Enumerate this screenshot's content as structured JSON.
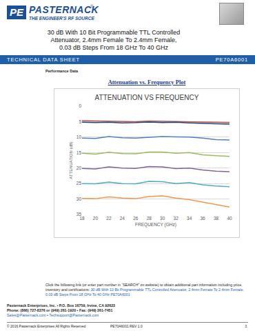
{
  "header": {
    "logo_mark": "PE",
    "logo_name": "PASTERNACK",
    "registered": "®",
    "tagline": "THE ENGINEER'S RF SOURCE",
    "title_lines": [
      "30 dB With 10 Bit Programmable TTL Controlled",
      "Attenuator, 2.4mm Female To 2.4mm Female,",
      "0.03 dB Steps From 18 GHz To 40 GHz"
    ],
    "banner_left": "TECHNICAL DATA SHEET",
    "banner_right": "PE70A6001"
  },
  "section": "Performance Data",
  "chart_heading": "Attenuation vs. Frequency Plot",
  "chart_data": {
    "type": "line",
    "title": "ATTENUATION VS FREQUENCY",
    "x_label": "FREQUENCY (GHz)",
    "y_label": "ATTENUATION (dB)",
    "x": [
      18,
      20,
      22,
      24,
      26,
      28,
      30,
      32,
      34,
      36,
      38,
      40
    ],
    "series": [
      {
        "color": "#c0504d",
        "values": [
          4.7,
          4.8,
          4.9,
          4.9,
          5.0,
          4.8,
          4.9,
          4.9,
          5.0,
          5.1,
          5.2,
          5.3
        ]
      },
      {
        "color": "#1f497d",
        "values": [
          5.2,
          5.3,
          5.2,
          5.4,
          5.3,
          5.1,
          5.3,
          5.2,
          5.4,
          5.6,
          5.7,
          5.8
        ]
      },
      {
        "color": "#4f81bd",
        "values": [
          10.3,
          10.4,
          9.8,
          10.2,
          10.3,
          10.0,
          9.8,
          9.9,
          10.0,
          10.3,
          10.8,
          10.9
        ]
      },
      {
        "color": "#9bbb59",
        "values": [
          15.2,
          15.5,
          14.9,
          15.3,
          15.4,
          14.8,
          14.8,
          15.2,
          15.0,
          15.7,
          16.0,
          16.2
        ]
      },
      {
        "color": "#8064a2",
        "values": [
          20.1,
          20.3,
          19.6,
          20.0,
          20.1,
          19.5,
          19.6,
          20.2,
          20.0,
          20.6,
          21.0,
          21.2
        ]
      },
      {
        "color": "#4bacc6",
        "values": [
          25.0,
          25.1,
          24.5,
          25.0,
          25.1,
          24.3,
          24.4,
          25.0,
          24.7,
          25.4,
          25.8,
          26.0
        ]
      },
      {
        "color": "#f79646",
        "values": [
          29.8,
          29.9,
          29.3,
          29.7,
          29.9,
          29.2,
          29.0,
          29.7,
          30.2,
          31.0,
          31.7,
          32.6
        ]
      }
    ],
    "xlim": [
      18,
      40
    ],
    "xticks": [
      18,
      20,
      22,
      24,
      26,
      28,
      30,
      32,
      34,
      36,
      38,
      40
    ],
    "ylim": [
      35,
      0
    ],
    "yticks": [
      0,
      5,
      10,
      15,
      20,
      25,
      30,
      35
    ],
    "grid": true
  },
  "link_intro": "Click the following link (or enter part number in “SEARCH” on website) to obtain additional part information including price, inventory and certifications:",
  "link_title": "30 dB With 10 Bit Programmable TTL Controlled Attenuator, 2.4mm Female To 2.4mm Female, 0.03 dB Steps From 18 GHz To 40 GHz PE70A6001",
  "footer": {
    "address": "Pasternack Enterprises, Inc. • P.O. Box 16759, Irvine, CA 92623",
    "phone": "Phone: (866) 727-8376 or (949) 261-1920 • Fax: (949) 261-7451",
    "emails": "Sales@Pasternack.com • Techsupport@Pasternack.com",
    "copyright": "© 2016 Pasternack Enterprises All Rights Reserved",
    "doc_id": "PE70A6001 REV 1.0",
    "page": "3"
  }
}
